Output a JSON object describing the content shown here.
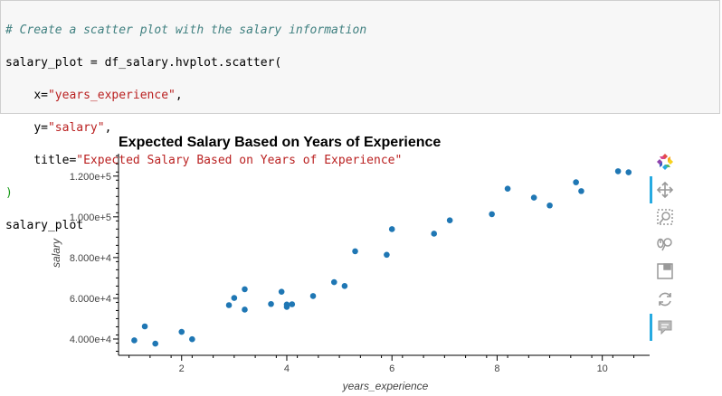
{
  "code": {
    "comment": "# Create a scatter plot with the salary information",
    "line1_var": "salary_plot = df_salary.hvplot.scatter(",
    "x_key": "x=",
    "x_val": "\"years_experience\"",
    "y_key": "y=",
    "y_val": "\"salary\"",
    "title_key": "title=",
    "title_val": "\"Expected Salary Based on Years of Experience\"",
    "close_paren": ")",
    "last_line": "salary_plot"
  },
  "colors": {
    "point": "#1f77b4",
    "tool_active": "#26aae1"
  },
  "toolbar": {
    "tools": [
      "bokeh-logo-icon",
      "pan-icon",
      "box-zoom-icon",
      "wheel-zoom-icon",
      "save-icon",
      "reset-icon",
      "hover-icon"
    ]
  },
  "chart_data": {
    "type": "scatter",
    "title": "Expected Salary Based on Years of Experience",
    "xlabel": "years_experience",
    "ylabel": "salary",
    "xlim": [
      0.8,
      10.9
    ],
    "ylim": [
      32000,
      131000
    ],
    "x_ticks": [
      2,
      4,
      6,
      8,
      10
    ],
    "x_tick_labels": [
      "2",
      "4",
      "6",
      "8",
      "10"
    ],
    "y_ticks": [
      40000,
      60000,
      80000,
      100000,
      120000
    ],
    "y_tick_labels": [
      "4.000e+4",
      "6.000e+4",
      "8.000e+4",
      "1.000e+5",
      "1.200e+5"
    ],
    "points": [
      {
        "x": 1.1,
        "y": 39343
      },
      {
        "x": 1.3,
        "y": 46205
      },
      {
        "x": 1.5,
        "y": 37731
      },
      {
        "x": 2.0,
        "y": 43525
      },
      {
        "x": 2.2,
        "y": 39891
      },
      {
        "x": 2.9,
        "y": 56642
      },
      {
        "x": 3.0,
        "y": 60150
      },
      {
        "x": 3.2,
        "y": 54445
      },
      {
        "x": 3.2,
        "y": 64445
      },
      {
        "x": 3.7,
        "y": 57189
      },
      {
        "x": 3.9,
        "y": 63218
      },
      {
        "x": 4.0,
        "y": 55794
      },
      {
        "x": 4.0,
        "y": 56957
      },
      {
        "x": 4.1,
        "y": 57081
      },
      {
        "x": 4.5,
        "y": 61111
      },
      {
        "x": 4.9,
        "y": 67938
      },
      {
        "x": 5.1,
        "y": 66029
      },
      {
        "x": 5.3,
        "y": 83088
      },
      {
        "x": 5.9,
        "y": 81363
      },
      {
        "x": 6.0,
        "y": 93940
      },
      {
        "x": 6.8,
        "y": 91738
      },
      {
        "x": 7.1,
        "y": 98273
      },
      {
        "x": 7.9,
        "y": 101302
      },
      {
        "x": 8.2,
        "y": 113812
      },
      {
        "x": 8.7,
        "y": 109431
      },
      {
        "x": 9.0,
        "y": 105582
      },
      {
        "x": 9.5,
        "y": 116969
      },
      {
        "x": 9.6,
        "y": 112635
      },
      {
        "x": 10.3,
        "y": 122391
      },
      {
        "x": 10.5,
        "y": 121872
      }
    ]
  }
}
